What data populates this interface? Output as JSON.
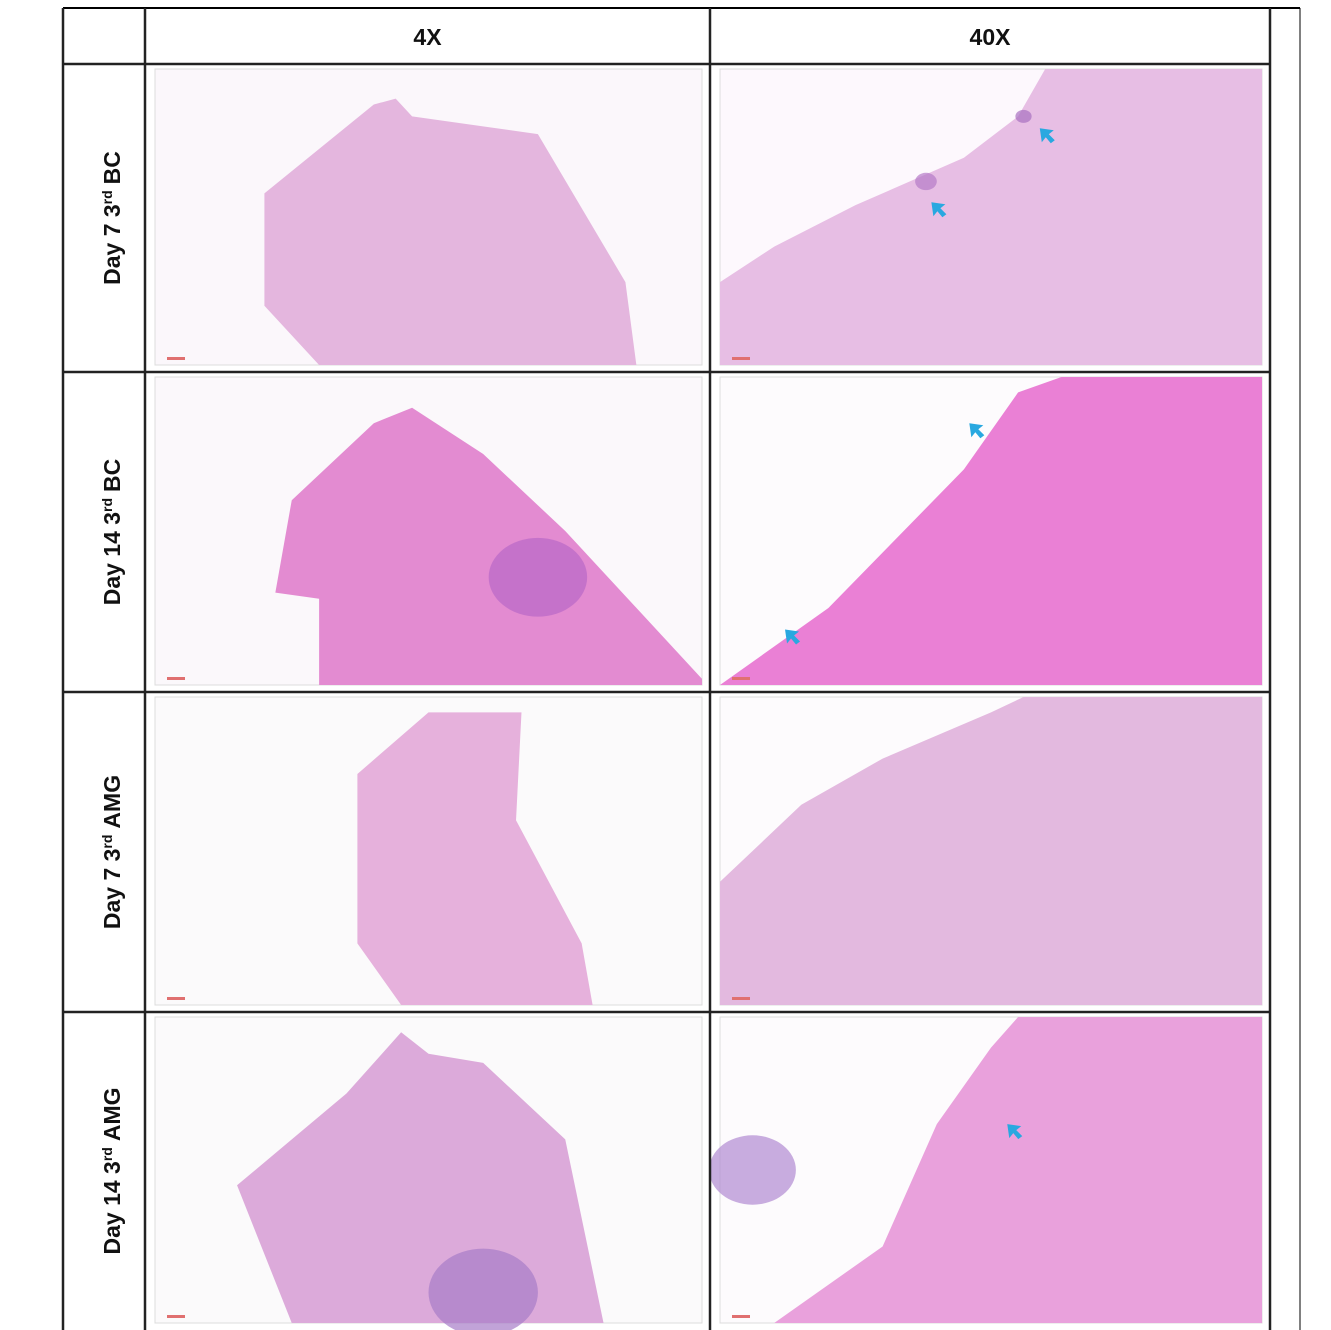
{
  "table": {
    "columns": [
      "4X",
      "40X"
    ],
    "rows": [
      {
        "label": {
          "text": "Day 7 3",
          "sup": "rd",
          "group": "BC"
        }
      },
      {
        "label": {
          "text": "Day 14 3",
          "sup": "rd",
          "group": "BC"
        }
      },
      {
        "label": {
          "text": "Day 7 3",
          "sup": "rd",
          "group": "AMG"
        }
      },
      {
        "label": {
          "text": "Day 14 3",
          "sup": "rd",
          "group": "AMG"
        }
      }
    ]
  }
}
